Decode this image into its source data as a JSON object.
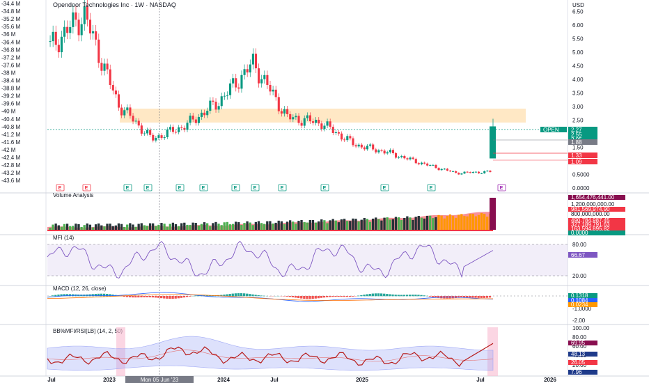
{
  "title": "Opendoor Technologies Inc · 1W · NASDAQ",
  "currency": "USD",
  "left_axis_ticks": [
    "-34.4 M",
    "-34.8 M",
    "-35.2 M",
    "-35.6 M",
    "-36 M",
    "-36.4 M",
    "-36.8 M",
    "-37.2 M",
    "-37.6 M",
    "-38 M",
    "-38.4 M",
    "-38.8 M",
    "-39.2 M",
    "-39.6 M",
    "-40 M",
    "-40.4 M",
    "-40.8 M",
    "-41.2 M",
    "-41.6 M",
    "-42 M",
    "-42.4 M",
    "-42.8 M",
    "-43.2 M",
    "-43.6 M"
  ],
  "price_axis_ticks": [
    "6.50",
    "6.00",
    "5.50",
    "5.00",
    "4.50",
    "4.00",
    "3.50",
    "3.00",
    "2.50",
    "2.00",
    "1.50",
    "1.000",
    "0.5000",
    "0.0000"
  ],
  "price_badges": [
    {
      "text": "OPEN",
      "color": "#089981"
    },
    {
      "text": "2.27",
      "color": "#089981"
    },
    {
      "text": "2.55",
      "color": "#089981"
    },
    {
      "text": "2.05",
      "color": "#089981"
    },
    {
      "text": "1.88",
      "color": "#787b86"
    },
    {
      "text": "1.33",
      "color": "#f23645"
    },
    {
      "text": "1.09",
      "color": "#f23645"
    }
  ],
  "events": [
    "E",
    "E",
    "E",
    "E",
    "E",
    "E",
    "E",
    "E",
    "E",
    "E",
    "E",
    "E",
    "E",
    "E"
  ],
  "volume_label": "Volume Analysis",
  "volume_badges": [
    {
      "text": "1,654,476,441.00",
      "color": "#880e4f"
    },
    {
      "text": "1,200,000,000.00",
      "color": "#ffffff"
    },
    {
      "text": "981,569,974.90",
      "color": "#f23645"
    },
    {
      "text": "800,000,000.00",
      "color": "#ffffff"
    },
    {
      "text": "490,784,987.45",
      "color": "#f23645"
    },
    {
      "text": "327,189,791.63",
      "color": "#f23645"
    },
    {
      "text": "163,594,895.82",
      "color": "#f23645"
    },
    {
      "text": "0.0000",
      "color": "#089981"
    }
  ],
  "mfi_label": "MFI (14)",
  "mfi_ticks": [
    "80.00",
    "20.00"
  ],
  "mfi_badge": "66.67",
  "macd_label": "MACD (12, 26, close)",
  "macd_ticks": [
    "0.0000",
    "-1.0000",
    "-2.00"
  ],
  "macd_badges": [
    {
      "text": "0.1318",
      "color": "#089981"
    },
    {
      "text": "0.1084",
      "color": "#2962ff"
    },
    {
      "text": "0.0234",
      "color": "#ff9800"
    }
  ],
  "bb_label": "BB%MFI/RSI[LB] (14, 2, 50)",
  "bb_ticks": [
    "100.00",
    "80.00",
    "60.00",
    "40.00",
    "20.00"
  ],
  "bb_badges": [
    {
      "text": "69.95",
      "color": "#880e4f"
    },
    {
      "text": "48.13",
      "color": "#1e3a8a"
    },
    {
      "text": "26.05",
      "color": "#f23645"
    },
    {
      "text": "7.96",
      "color": "#1e3a8a"
    }
  ],
  "time_labels": [
    "Jul",
    "2023",
    "2024",
    "Jul",
    "2025",
    "Jul",
    "2026"
  ],
  "crosshair_time": "Mon 05 Jun '23",
  "colors": {
    "up": "#089981",
    "down": "#f23645",
    "zone": "#ffe0b2",
    "mfi_line": "#7e57c2",
    "bb_band": "#9fa8f5",
    "bb_line": "#b71c1c"
  },
  "chart_data": {
    "type": "candlestick",
    "timeframe": "1W",
    "symbol": "OPEN",
    "x": [
      "2022-07",
      "2023-01",
      "2023-06",
      "2024-01",
      "2024-07",
      "2025-01",
      "2025-07"
    ],
    "price_close_approx": [
      5.2,
      6.4,
      3.1,
      1.8,
      2.3,
      3.2,
      4.6,
      2.6,
      2.4,
      1.6,
      1.3,
      0.9,
      0.55,
      0.6,
      2.27
    ],
    "last": {
      "open": 1.09,
      "high": 2.55,
      "low": 1.09,
      "close": 2.27
    },
    "resistance_zone": [
      2.55,
      2.95
    ],
    "ylim": [
      0,
      6.8
    ],
    "mfi": {
      "last": 66.67,
      "upper": 80,
      "lower": 20
    },
    "macd": {
      "hist": 0.1318,
      "macd": 0.1084,
      "signal": 0.0234
    },
    "volume_last": 1654476441
  }
}
